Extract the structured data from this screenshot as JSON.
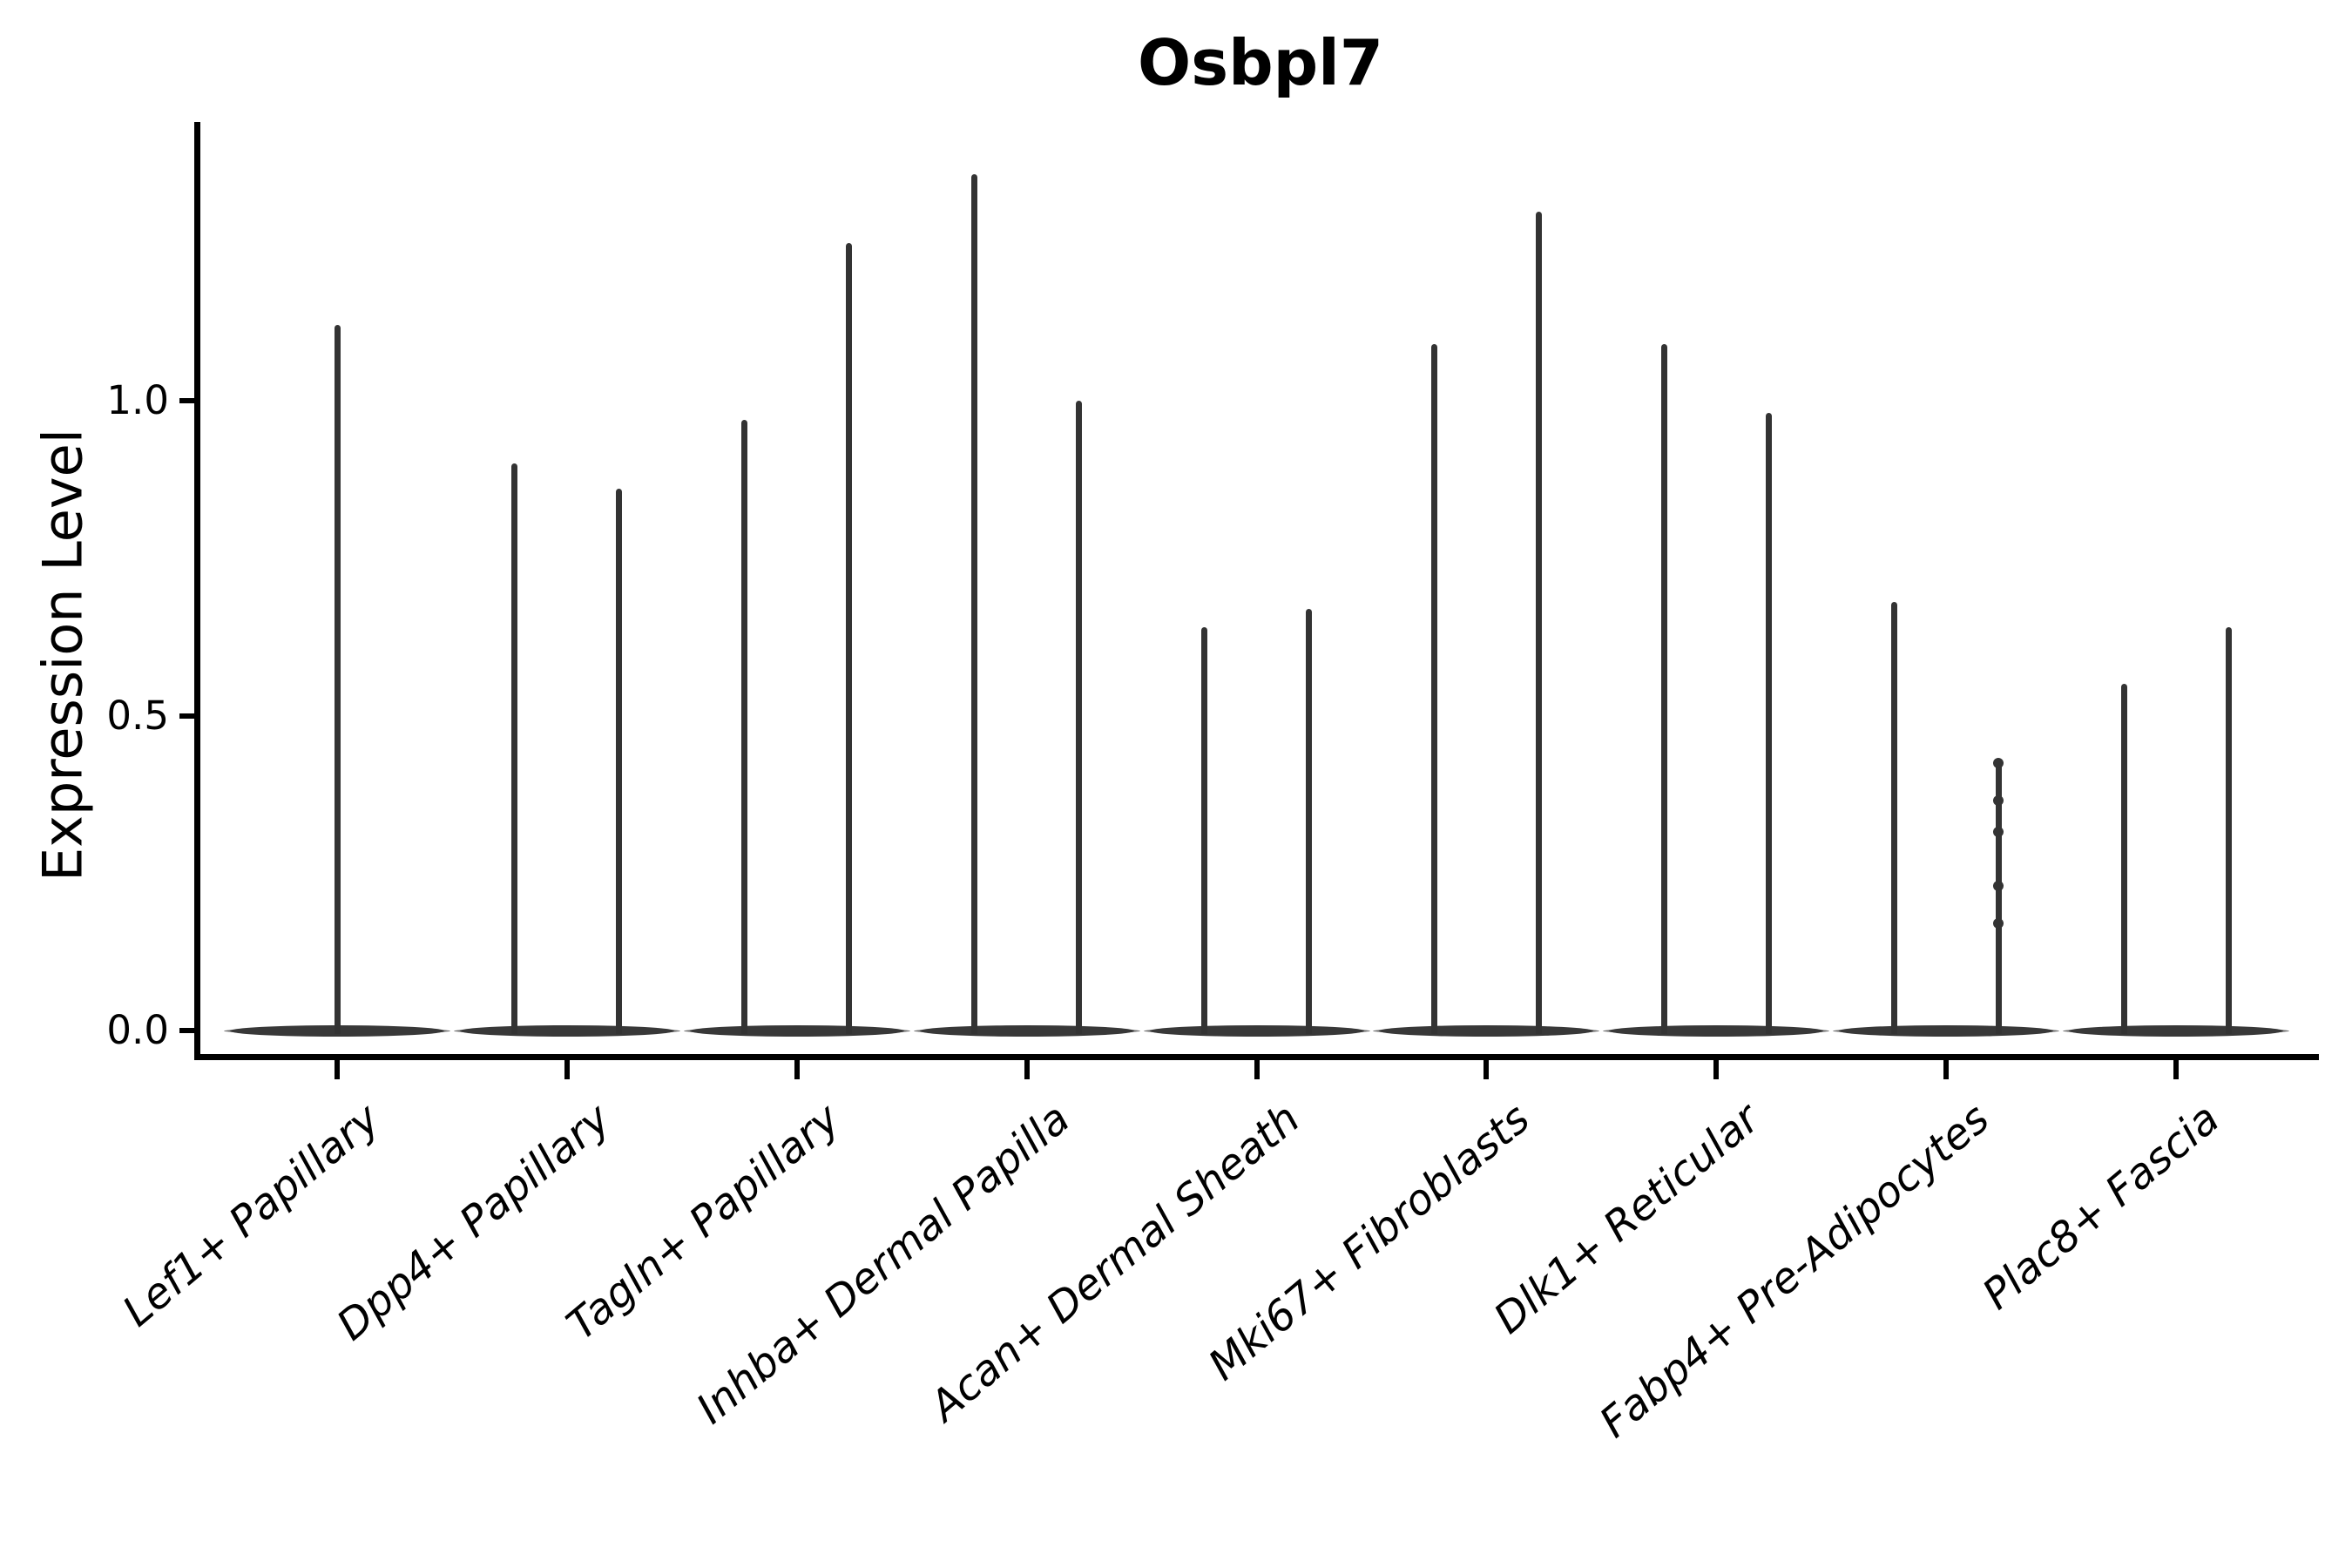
{
  "page": {
    "background": "#ffffff"
  },
  "chart_data": {
    "type": "violin",
    "title": "Osbpl7",
    "ylabel": "Expression Level",
    "xlabel": "",
    "ylim": [
      -0.04,
      1.44
    ],
    "yticks": [
      0.0,
      0.5,
      1.0
    ],
    "ytick_labels": [
      "0.0",
      "0.5",
      "1.0"
    ],
    "grid": false,
    "legend": "none",
    "violin_color": "#333333",
    "axis_color": "#000000",
    "categories": [
      "Lef1+ Papillary",
      "Dpp4+ Papillary",
      "Tagln+ Papillary",
      "Inhba+ Dermal Papilla",
      "Acan+ Dermal Sheath",
      "Mki67+ Fibroblasts",
      "Dlk1+ Reticular",
      "Fabp4+ Pre-Adipocytes",
      "Plac8+ Fascia"
    ],
    "groups": [
      {
        "category": "Lef1+ Papillary",
        "violins": [
          {
            "position": "center",
            "max_expression": 1.12
          }
        ]
      },
      {
        "category": "Dpp4+ Papillary",
        "violins": [
          {
            "position": "left",
            "max_expression": 0.9
          },
          {
            "position": "right",
            "max_expression": 0.86
          }
        ]
      },
      {
        "category": "Tagln+ Papillary",
        "violins": [
          {
            "position": "left",
            "max_expression": 0.97
          },
          {
            "position": "right",
            "max_expression": 1.25
          }
        ]
      },
      {
        "category": "Inhba+ Dermal Papilla",
        "violins": [
          {
            "position": "left",
            "max_expression": 1.36
          },
          {
            "position": "right",
            "max_expression": 1.0
          }
        ]
      },
      {
        "category": "Acan+ Dermal Sheath",
        "violins": [
          {
            "position": "left",
            "max_expression": 0.64
          },
          {
            "position": "right",
            "max_expression": 0.67
          }
        ]
      },
      {
        "category": "Mki67+ Fibroblasts",
        "violins": [
          {
            "position": "left",
            "max_expression": 1.09
          },
          {
            "position": "right",
            "max_expression": 1.3
          }
        ]
      },
      {
        "category": "Dlk1+ Reticular",
        "violins": [
          {
            "position": "left",
            "max_expression": 1.09
          },
          {
            "position": "right",
            "max_expression": 0.98
          }
        ]
      },
      {
        "category": "Fabp4+ Pre-Adipocytes",
        "violins": [
          {
            "position": "left",
            "max_expression": 0.68
          },
          {
            "position": "right",
            "max_expression": 0.43,
            "points": [
              0.425,
              0.365,
              0.315,
              0.23,
              0.17
            ]
          }
        ]
      },
      {
        "category": "Plac8+ Fascia",
        "violins": [
          {
            "position": "left",
            "max_expression": 0.55
          },
          {
            "position": "right",
            "max_expression": 0.64
          }
        ]
      }
    ]
  }
}
